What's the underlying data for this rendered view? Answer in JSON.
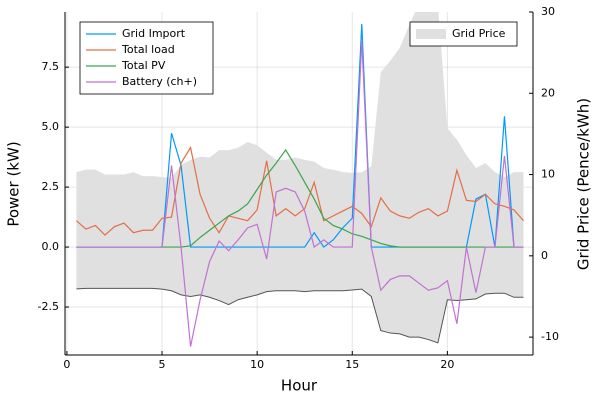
{
  "chart_data": {
    "type": "line",
    "x_label": "Hour",
    "y_label": "Power (kW)",
    "y2_label": "Grid Price (Pence/kWh)",
    "x": [
      0.5,
      1,
      1.5,
      2,
      2.5,
      3,
      3.5,
      4,
      4.5,
      5,
      5.5,
      6,
      6.5,
      7,
      7.5,
      8,
      8.5,
      9,
      9.5,
      10,
      10.5,
      11,
      11.5,
      12,
      12.5,
      13,
      13.5,
      14,
      14.5,
      15,
      15.5,
      16,
      16.5,
      17,
      17.5,
      18,
      18.5,
      19,
      19.5,
      20,
      20.5,
      21,
      21.5,
      22,
      22.5,
      23,
      23.5,
      24
    ],
    "series": [
      {
        "name": "Grid Import",
        "color": "#009af9",
        "values": [
          0,
          0,
          0,
          0,
          0,
          0,
          0,
          0,
          0,
          0,
          4.75,
          3.4,
          0,
          0,
          0,
          0,
          0,
          0,
          0,
          0,
          0,
          0,
          0,
          0,
          0,
          0.6,
          0,
          0.3,
          0.8,
          1.2,
          9.3,
          0,
          0,
          0,
          0,
          0,
          0,
          0,
          0,
          0,
          0,
          0,
          2.0,
          2.2,
          0,
          5.45,
          0,
          0
        ]
      },
      {
        "name": "Total load",
        "color": "#e26f46",
        "values": [
          1.1,
          0.75,
          0.9,
          0.5,
          0.85,
          1.0,
          0.6,
          0.7,
          0.7,
          1.2,
          1.25,
          3.5,
          4.15,
          2.2,
          1.2,
          0.6,
          1.3,
          1.2,
          1.1,
          1.55,
          3.6,
          1.3,
          1.6,
          1.3,
          1.6,
          2.7,
          1.1,
          1.3,
          1.5,
          1.7,
          1.4,
          0.85,
          2.05,
          1.5,
          1.3,
          1.2,
          1.45,
          1.6,
          1.3,
          1.5,
          3.2,
          1.95,
          1.9,
          2.2,
          1.8,
          1.7,
          1.55,
          1.1
        ]
      },
      {
        "name": "Total PV",
        "color": "#3da44d",
        "values": [
          0,
          0,
          0,
          0,
          0,
          0,
          0,
          0,
          0,
          0,
          0,
          0,
          0.05,
          0.4,
          0.7,
          1.0,
          1.3,
          1.5,
          1.8,
          2.4,
          3.0,
          3.5,
          4.05,
          3.4,
          2.7,
          2.0,
          1.2,
          0.9,
          0.75,
          0.55,
          0.45,
          0.3,
          0.15,
          0.05,
          0,
          0,
          0,
          0,
          0,
          0,
          0,
          0,
          0,
          0,
          0,
          0,
          0,
          0
        ]
      },
      {
        "name": "Battery (ch+)",
        "color": "#c271d2",
        "values": [
          0,
          0,
          0,
          0,
          0,
          0,
          0,
          0,
          0,
          0,
          3.4,
          0,
          -4.15,
          -2.2,
          -0.6,
          0.25,
          -0.15,
          0.3,
          0.8,
          0.95,
          -0.5,
          2.3,
          2.45,
          2.3,
          1.5,
          0,
          0.3,
          0,
          0,
          0,
          8.6,
          0,
          -1.8,
          -1.35,
          -1.2,
          -1.2,
          -1.5,
          -1.8,
          -1.7,
          -1.4,
          -3.2,
          0,
          -1.9,
          0,
          0,
          3.8,
          0,
          0
        ]
      },
      {
        "name": "Grid Price",
        "color": "#e0e0e0",
        "line_color": "#555555",
        "axis": "y2",
        "values": [
          10.3,
          10.6,
          10.6,
          10,
          10,
          10,
          10.3,
          9.8,
          9.8,
          9.7,
          9.6,
          11.2,
          11.8,
          12.2,
          12.1,
          13,
          13,
          13.3,
          14,
          13.6,
          12.7,
          11.8,
          11.8,
          12.1,
          11.8,
          11.6,
          10.8,
          10.6,
          10.3,
          10.2,
          10.3,
          11,
          22.6,
          24,
          25.6,
          28.4,
          31,
          31,
          31,
          15.7,
          14.3,
          12.4,
          10.8,
          11.4,
          10.3,
          9.7,
          10.3,
          10.3
        ],
        "lower": [
          -4.06,
          -4.0,
          -4.0,
          -4.0,
          -4.0,
          -4.0,
          -4.0,
          -4.0,
          -4.0,
          -4.1,
          -4.3,
          -4.8,
          -5.0,
          -4.8,
          -5.1,
          -5.5,
          -6.0,
          -5.4,
          -5.1,
          -4.8,
          -4.4,
          -4.3,
          -4.3,
          -4.3,
          -4.4,
          -4.3,
          -4.3,
          -4.3,
          -4.3,
          -4.2,
          -4.1,
          -5.0,
          -9.2,
          -9.5,
          -9.6,
          -10,
          -10,
          -10.3,
          -10.7,
          -5.4,
          -5.5,
          -5.4,
          -5.3,
          -4.7,
          -4.6,
          -4.6,
          -5.1,
          -5.1
        ]
      }
    ],
    "xlim": [
      -0.1,
      24.5
    ],
    "xticks": [
      0,
      5,
      10,
      15,
      20
    ],
    "ylim": [
      -4.5,
      9.8
    ],
    "yticks": [
      {
        "value": -2.5,
        "label": "-2.5"
      },
      {
        "value": 0,
        "label": "0.0"
      },
      2.5,
      {
        "value": 5,
        "label": "5.0"
      },
      7.5
    ],
    "y2lim": [
      -12.2,
      30
    ],
    "y2ticks": [
      -10,
      0,
      10,
      20,
      30
    ],
    "grid": true,
    "legend": "top-left",
    "legend2": "top-right"
  }
}
